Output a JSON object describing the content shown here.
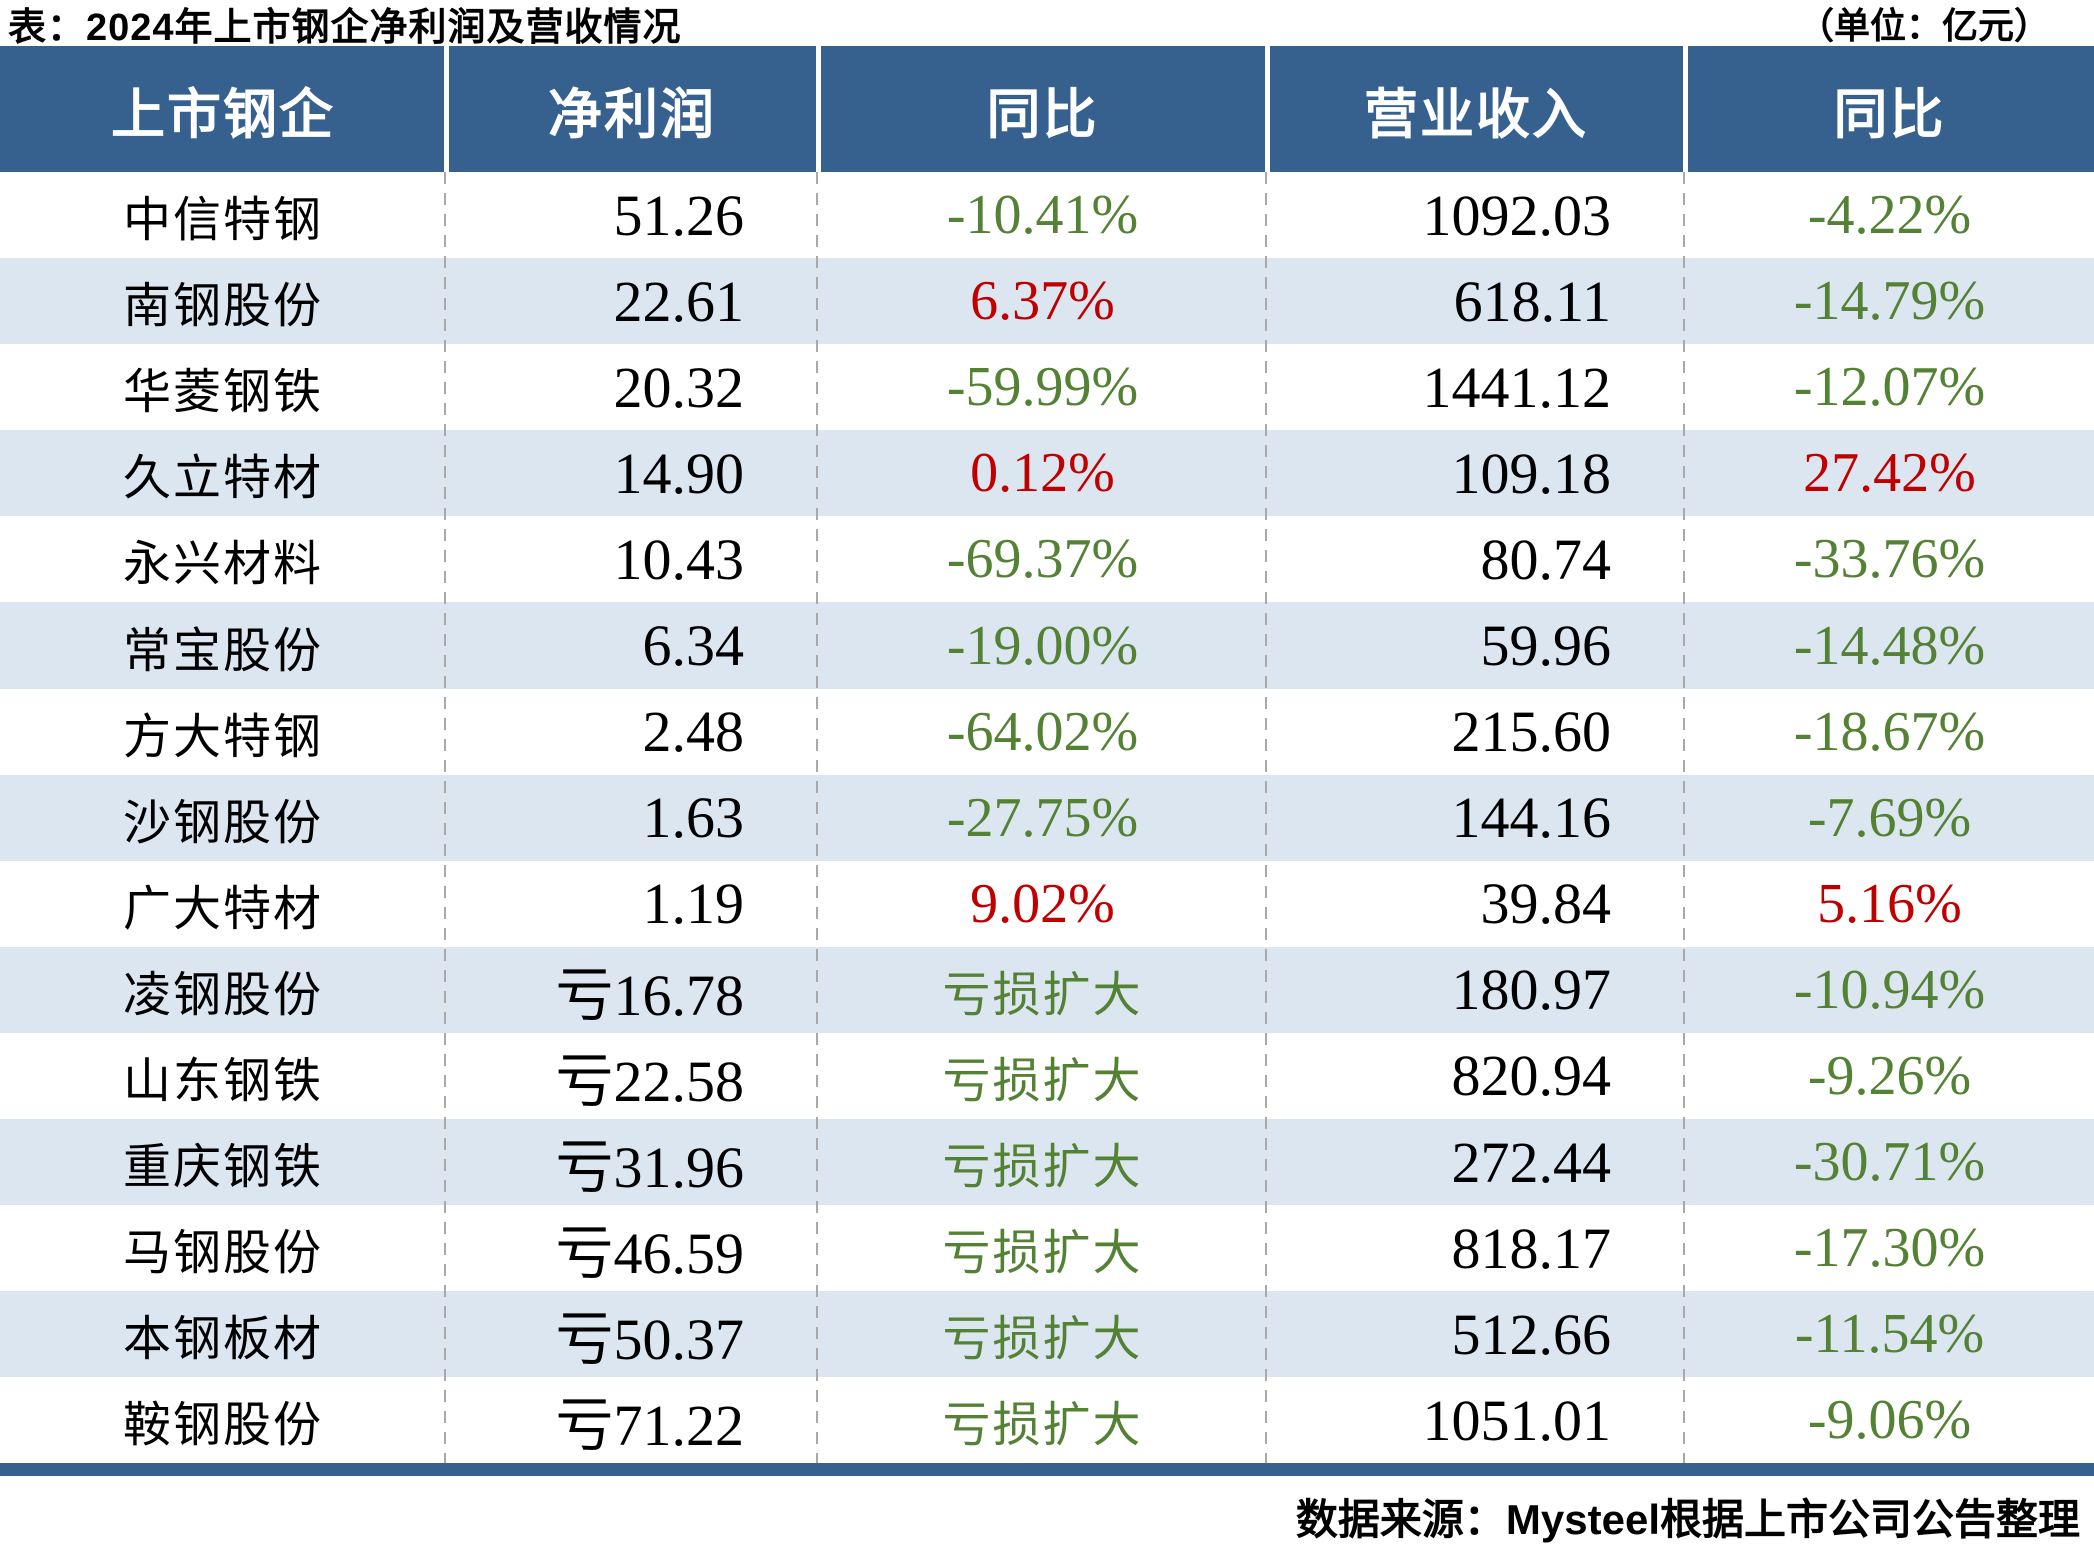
{
  "chart_data": {
    "type": "table",
    "title": "表：2024年上市钢企净利润及营收情况",
    "unit": "（单位：亿元）",
    "source": "数据来源：Mysteel根据上市公司公告整理",
    "columns": [
      "上市钢企",
      "净利润",
      "同比",
      "营业收入",
      "同比"
    ],
    "rows": [
      {
        "company": "中信特钢",
        "net_profit": "51.26",
        "profit_yoy": "-10.41%",
        "profit_yoy_color": "green",
        "revenue": "1092.03",
        "revenue_yoy": "-4.22%",
        "revenue_yoy_color": "green"
      },
      {
        "company": "南钢股份",
        "net_profit": "22.61",
        "profit_yoy": "6.37%",
        "profit_yoy_color": "red",
        "revenue": "618.11",
        "revenue_yoy": "-14.79%",
        "revenue_yoy_color": "green"
      },
      {
        "company": "华菱钢铁",
        "net_profit": "20.32",
        "profit_yoy": "-59.99%",
        "profit_yoy_color": "green",
        "revenue": "1441.12",
        "revenue_yoy": "-12.07%",
        "revenue_yoy_color": "green"
      },
      {
        "company": "久立特材",
        "net_profit": "14.90",
        "profit_yoy": "0.12%",
        "profit_yoy_color": "red",
        "revenue": "109.18",
        "revenue_yoy": "27.42%",
        "revenue_yoy_color": "red"
      },
      {
        "company": "永兴材料",
        "net_profit": "10.43",
        "profit_yoy": "-69.37%",
        "profit_yoy_color": "green",
        "revenue": "80.74",
        "revenue_yoy": "-33.76%",
        "revenue_yoy_color": "green"
      },
      {
        "company": "常宝股份",
        "net_profit": "6.34",
        "profit_yoy": "-19.00%",
        "profit_yoy_color": "green",
        "revenue": "59.96",
        "revenue_yoy": "-14.48%",
        "revenue_yoy_color": "green"
      },
      {
        "company": "方大特钢",
        "net_profit": "2.48",
        "profit_yoy": "-64.02%",
        "profit_yoy_color": "green",
        "revenue": "215.60",
        "revenue_yoy": "-18.67%",
        "revenue_yoy_color": "green"
      },
      {
        "company": "沙钢股份",
        "net_profit": "1.63",
        "profit_yoy": "-27.75%",
        "profit_yoy_color": "green",
        "revenue": "144.16",
        "revenue_yoy": "-7.69%",
        "revenue_yoy_color": "green"
      },
      {
        "company": "广大特材",
        "net_profit": "1.19",
        "profit_yoy": "9.02%",
        "profit_yoy_color": "red",
        "revenue": "39.84",
        "revenue_yoy": "5.16%",
        "revenue_yoy_color": "red"
      },
      {
        "company": "凌钢股份",
        "net_profit": "亏16.78",
        "profit_yoy": "亏损扩大",
        "profit_yoy_color": "green",
        "revenue": "180.97",
        "revenue_yoy": "-10.94%",
        "revenue_yoy_color": "green"
      },
      {
        "company": "山东钢铁",
        "net_profit": "亏22.58",
        "profit_yoy": "亏损扩大",
        "profit_yoy_color": "green",
        "revenue": "820.94",
        "revenue_yoy": "-9.26%",
        "revenue_yoy_color": "green"
      },
      {
        "company": "重庆钢铁",
        "net_profit": "亏31.96",
        "profit_yoy": "亏损扩大",
        "profit_yoy_color": "green",
        "revenue": "272.44",
        "revenue_yoy": "-30.71%",
        "revenue_yoy_color": "green"
      },
      {
        "company": "马钢股份",
        "net_profit": "亏46.59",
        "profit_yoy": "亏损扩大",
        "profit_yoy_color": "green",
        "revenue": "818.17",
        "revenue_yoy": "-17.30%",
        "revenue_yoy_color": "green"
      },
      {
        "company": "本钢板材",
        "net_profit": "亏50.37",
        "profit_yoy": "亏损扩大",
        "profit_yoy_color": "green",
        "revenue": "512.66",
        "revenue_yoy": "-11.54%",
        "revenue_yoy_color": "green"
      },
      {
        "company": "鞍钢股份",
        "net_profit": "亏71.22",
        "profit_yoy": "亏损扩大",
        "profit_yoy_color": "green",
        "revenue": "1051.01",
        "revenue_yoy": "-9.06%",
        "revenue_yoy_color": "green"
      }
    ],
    "legend_position": "none",
    "grid": "dashed-vertical-separators"
  },
  "colors": {
    "header_bg": "#36608E",
    "header_text": "#FFFFFF",
    "row_alt_bg": "#DCE6F1",
    "green": "#548235",
    "red": "#C00000",
    "separator_gray": "#A9A9A9",
    "accent_bar": "#36608E"
  }
}
